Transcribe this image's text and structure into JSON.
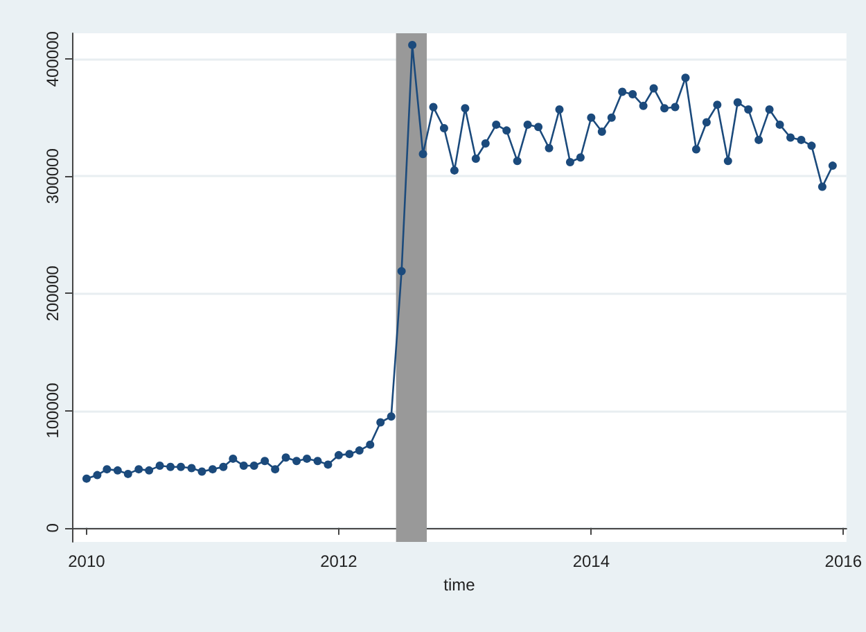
{
  "chart_data": {
    "type": "line",
    "xlabel": "time",
    "x": [
      "2010-01",
      "2010-02",
      "2010-03",
      "2010-04",
      "2010-05",
      "2010-06",
      "2010-07",
      "2010-08",
      "2010-09",
      "2010-10",
      "2010-11",
      "2010-12",
      "2011-01",
      "2011-02",
      "2011-03",
      "2011-04",
      "2011-05",
      "2011-06",
      "2011-07",
      "2011-08",
      "2011-09",
      "2011-10",
      "2011-11",
      "2011-12",
      "2012-01",
      "2012-02",
      "2012-03",
      "2012-04",
      "2012-05",
      "2012-06",
      "2012-07",
      "2012-08",
      "2012-09",
      "2012-10",
      "2012-11",
      "2012-12",
      "2013-01",
      "2013-02",
      "2013-03",
      "2013-04",
      "2013-05",
      "2013-06",
      "2013-07",
      "2013-08",
      "2013-09",
      "2013-10",
      "2013-11",
      "2013-12",
      "2014-01",
      "2014-02",
      "2014-03",
      "2014-04",
      "2014-05",
      "2014-06",
      "2014-07",
      "2014-08",
      "2014-09",
      "2014-10",
      "2014-11",
      "2014-12",
      "2015-01",
      "2015-02",
      "2015-03",
      "2015-04",
      "2015-05",
      "2015-06",
      "2015-07",
      "2015-08",
      "2015-09",
      "2015-10",
      "2015-11",
      "2015-12"
    ],
    "series": [
      {
        "color": "#1b4a7c",
        "values": [
          42000,
          45000,
          50000,
          49000,
          46000,
          50000,
          49000,
          53000,
          52000,
          52000,
          51000,
          48000,
          50000,
          52000,
          59000,
          53000,
          53000,
          57000,
          50000,
          60000,
          57000,
          59000,
          57000,
          54000,
          62000,
          63000,
          66000,
          71000,
          90000,
          95000,
          219000,
          412000,
          319000,
          359000,
          341000,
          305000,
          358000,
          315000,
          328000,
          344000,
          339000,
          313000,
          344000,
          342000,
          324000,
          357000,
          312000,
          316000,
          350000,
          338000,
          350000,
          372000,
          370000,
          360000,
          375000,
          358000,
          359000,
          384000,
          323000,
          346000,
          361000,
          313000,
          363000,
          357000,
          331000,
          357000,
          344000,
          333000,
          331000,
          326000,
          291000,
          309000
        ]
      }
    ],
    "xlim": [
      "2009-11-20",
      "2016-01-10"
    ],
    "xticks": [
      "2010",
      "2012",
      "2014",
      "2016"
    ],
    "ylim": [
      -12000,
      422000
    ],
    "yticks": [
      0,
      100000,
      200000,
      300000,
      400000
    ],
    "bands": [
      {
        "axis": "x",
        "from": "2012-06-15",
        "to": "2012-09-12",
        "color": "#999999"
      }
    ],
    "grid": "y",
    "marker": "circle",
    "line_style": "solid"
  }
}
